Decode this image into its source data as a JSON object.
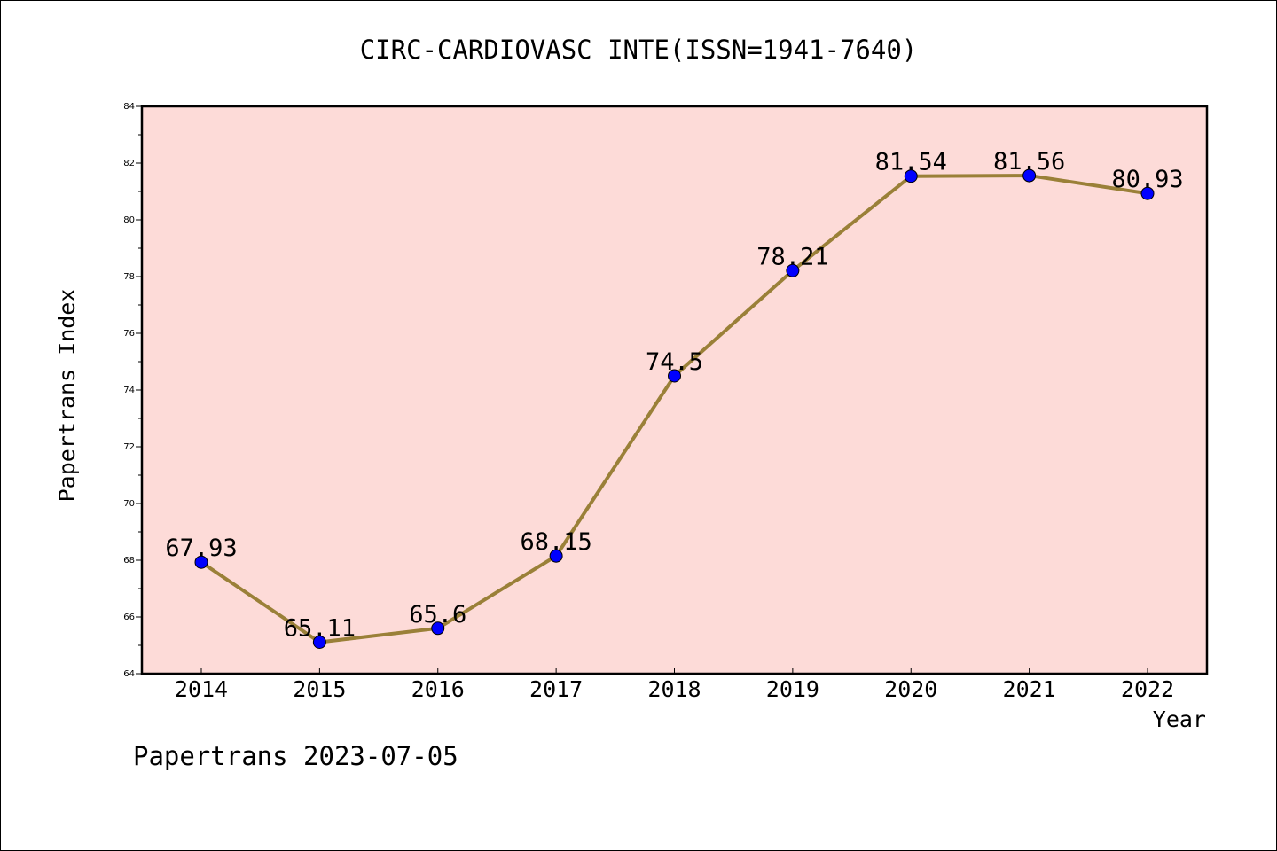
{
  "chart_data": {
    "type": "line",
    "title": "CIRC-CARDIOVASC INTE(ISSN=1941-7640)",
    "xlabel": "Year",
    "ylabel": "Papertrans Index",
    "categories": [
      "2014",
      "2015",
      "2016",
      "2017",
      "2018",
      "2019",
      "2020",
      "2021",
      "2022"
    ],
    "series": [
      {
        "values": [
          67.93,
          65.11,
          65.6,
          68.15,
          74.5,
          78.21,
          81.54,
          81.56,
          80.93
        ],
        "labels": [
          "67.93",
          "65.11",
          "65.6",
          "68.15",
          "74.5",
          "78.21",
          "81.54",
          "81.56",
          "80.93"
        ]
      }
    ],
    "ylim": [
      64,
      84
    ],
    "yticks": [
      "64",
      "66",
      "68",
      "70",
      "72",
      "74",
      "76",
      "78",
      "80",
      "82",
      "84"
    ],
    "grid": false,
    "colors": {
      "plot_background": "#fddbd8",
      "line": "#9a8038",
      "marker": "#0000ff"
    }
  },
  "footer": "Papertrans 2023-07-05"
}
